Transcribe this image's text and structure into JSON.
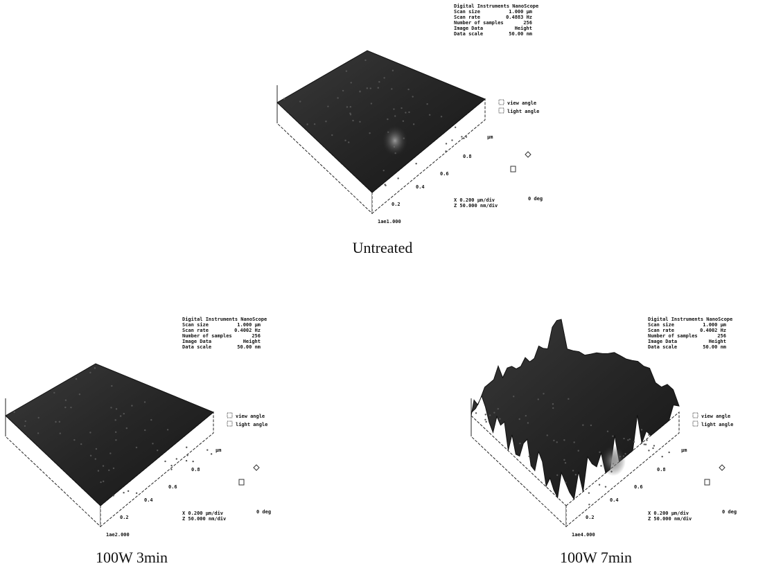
{
  "panels": [
    {
      "caption": "Untreated",
      "info": [
        [
          "Digital Instruments NanoScope",
          ""
        ],
        [
          "Scan size",
          "1.000 µm"
        ],
        [
          "Scan rate",
          "0.4883 Hz"
        ],
        [
          "Number of samples",
          "256"
        ],
        [
          "Image Data",
          "Height"
        ],
        [
          "Data scale",
          "50.00 nm"
        ]
      ],
      "legend": [
        "view angle",
        "light angle"
      ],
      "ticks": [
        "0.2",
        "0.4",
        "0.6",
        "0.8",
        "µm"
      ],
      "scale": [
        "X 0.200 µm/div",
        "Z 50.000 nm/div"
      ],
      "angle": "0 deg",
      "file": "1ae1.000"
    },
    {
      "caption": "100W 3min",
      "info": [
        [
          "Digital Instruments NanoScope",
          ""
        ],
        [
          "Scan size",
          "1.000 µm"
        ],
        [
          "Scan rate",
          "0.4002 Hz"
        ],
        [
          "Number of samples",
          "256"
        ],
        [
          "Image Data",
          "Height"
        ],
        [
          "Data scale",
          "50.00 nm"
        ]
      ],
      "legend": [
        "view angle",
        "light angle"
      ],
      "ticks": [
        "0.2",
        "0.4",
        "0.6",
        "0.8",
        "µm"
      ],
      "scale": [
        "X 0.200 µm/div",
        "Z 50.000 nm/div"
      ],
      "angle": "0 deg",
      "file": "1ae2.000"
    },
    {
      "caption": "100W 7min",
      "info": [
        [
          "Digital Instruments NanoScope",
          ""
        ],
        [
          "Scan size",
          "1.000 µm"
        ],
        [
          "Scan rate",
          "0.4002 Hz"
        ],
        [
          "Number of samples",
          "256"
        ],
        [
          "Image Data",
          "Height"
        ],
        [
          "Data scale",
          "50.00 nm"
        ]
      ],
      "legend": [
        "view angle",
        "light angle"
      ],
      "ticks": [
        "0.2",
        "0.4",
        "0.6",
        "0.8",
        "µm"
      ],
      "scale": [
        "X 0.200 µm/div",
        "Z 50.000 nm/div"
      ],
      "angle": "0 deg",
      "file": "1ae4.000"
    }
  ]
}
